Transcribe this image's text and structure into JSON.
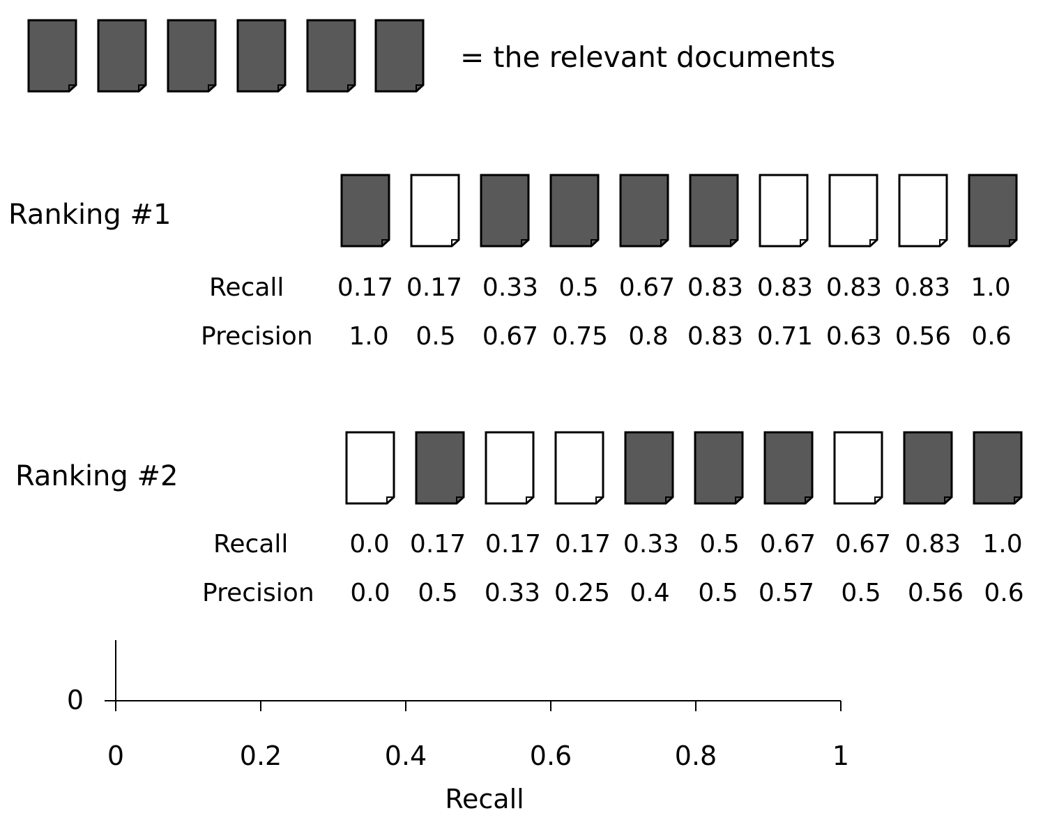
{
  "legend": {
    "relevant_count": 6,
    "label": "= the relevant documents"
  },
  "ranking1": {
    "title": "Ranking #1",
    "relevance": [
      true,
      false,
      true,
      true,
      true,
      true,
      false,
      false,
      false,
      true
    ],
    "recall_label": "Recall",
    "precision_label": "Precision",
    "recall": [
      "0.17",
      "0.17",
      "0.33",
      "0.5",
      "0.67",
      "0.83",
      "0.83",
      "0.83",
      "0.83",
      "1.0"
    ],
    "precision": [
      "1.0",
      "0.5",
      "0.67",
      "0.75",
      "0.8",
      "0.83",
      "0.71",
      "0.63",
      "0.56",
      "0.6"
    ]
  },
  "ranking2": {
    "title": "Ranking #2",
    "relevance": [
      false,
      true,
      false,
      false,
      true,
      true,
      true,
      false,
      true,
      true
    ],
    "recall_label": "Recall",
    "precision_label": "Precision",
    "recall": [
      "0.0",
      "0.17",
      "0.17",
      "0.17",
      "0.33",
      "0.5",
      "0.67",
      "0.67",
      "0.83",
      "1.0"
    ],
    "precision": [
      "0.0",
      "0.5",
      "0.33",
      "0.25",
      "0.4",
      "0.5",
      "0.57",
      "0.5",
      "0.56",
      "0.6"
    ]
  },
  "axis": {
    "y_tick": "0",
    "x_ticks": [
      "0",
      "0.2",
      "0.4",
      "0.6",
      "0.8",
      "1"
    ],
    "x_label": "Recall"
  },
  "colors": {
    "relevant_fill": "#595959",
    "nonrelevant_fill": "#ffffff",
    "stroke": "#000000"
  }
}
